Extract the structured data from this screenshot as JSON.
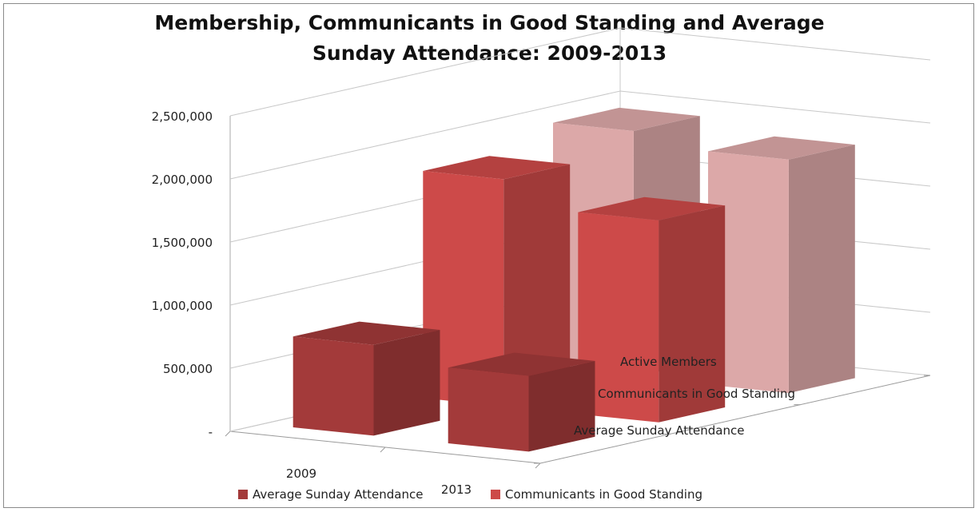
{
  "chart_data": {
    "type": "bar",
    "subtype": "3d-clustered-column",
    "title_line1": "Membership, Communicants in Good Standing and Average",
    "title_line2": "Sunday Attendance: 2009-2013",
    "categories": [
      "2009",
      "2013"
    ],
    "series": [
      {
        "name": "Average Sunday Attendance",
        "values": [
          720000,
          600000
        ],
        "color": "#a33a3a"
      },
      {
        "name": "Communicants in Good Standing",
        "values": [
          1800000,
          1600000
        ],
        "color": "#cd4a49"
      },
      {
        "name": "Active Members",
        "values": [
          1950000,
          1850000
        ],
        "color": "#dca8a8"
      }
    ],
    "depth_labels": [
      "Active Members",
      "Communicants in Good Standing",
      "Average Sunday Attendance"
    ],
    "yticks": [
      "-",
      "500,000",
      "1,000,000",
      "1,500,000",
      "2,000,000",
      "2,500,000"
    ],
    "ylim": [
      0,
      2500000
    ],
    "grid": true,
    "legend": {
      "position": "bottom",
      "entries": [
        "Average Sunday Attendance",
        "Communicants in Good Standing"
      ]
    }
  }
}
